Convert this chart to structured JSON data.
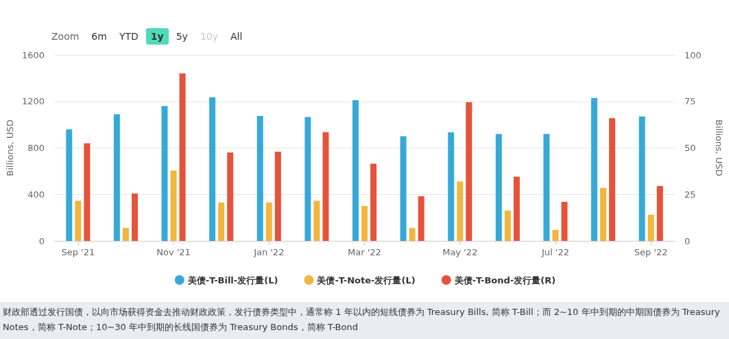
{
  "chart_data": {
    "type": "bar",
    "categories": [
      "Sep '21",
      null,
      "Nov '21",
      null,
      "Jan '22",
      null,
      "Mar '22",
      null,
      "May '22",
      null,
      "Jul '22",
      null,
      "Sep '22"
    ],
    "series": [
      {
        "name": "美债-T-Bill-发行量(L)",
        "color": "#36a9d8",
        "values": [
          960,
          1090,
          1160,
          1235,
          1075,
          1065,
          1210,
          900,
          935,
          920,
          920,
          1230,
          1070
        ]
      },
      {
        "name": "美债-T-Note-发行量(L)",
        "color": "#f2b63c",
        "values": [
          345,
          112,
          605,
          330,
          330,
          345,
          300,
          110,
          510,
          260,
          95,
          455,
          225
        ]
      },
      {
        "name": "美债-T-Bond-发行量(R)",
        "color": "#e5533b",
        "axis": "y2",
        "values": [
          52.5,
          25.5,
          90,
          47.5,
          48,
          58.5,
          41.5,
          24,
          74.5,
          34.5,
          21,
          66,
          29.5
        ]
      }
    ],
    "ylabel": "Billions, USD",
    "y2label": "Billions, USD",
    "ylim": [
      0,
      1600
    ],
    "yticks": [
      0,
      400,
      800,
      1200,
      1600
    ],
    "y2lim": [
      0,
      100
    ],
    "y2ticks": [
      0,
      25,
      50,
      75,
      100
    ],
    "grid": "y",
    "legend": "bottom",
    "annotations": [
      "Zoom",
      "6m",
      "YTD",
      "1y",
      "5y",
      "10y",
      "All",
      "财政部透过发行国债，以向市场获得资金去推动财政政策，发行债券类型中，通常称 1 年以内的短线债券为 Treasury Bills, 简称 T-Bill；而 2~10 年中到期的中期国债券为 Treasury Notes，简称 T-Note；10~30 年中到期的长线国债券为 Treasury Bonds，简称 T-Bond"
    ]
  }
}
